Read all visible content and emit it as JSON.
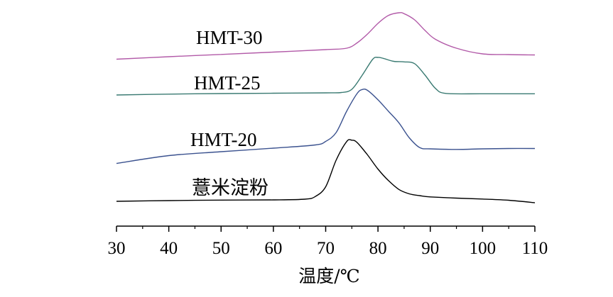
{
  "chart_data": {
    "type": "line",
    "title": "",
    "xlabel": "温度/℃",
    "ylabel": "",
    "xlim": [
      30,
      110
    ],
    "xticks": [
      30,
      40,
      50,
      60,
      70,
      80,
      90,
      100,
      110
    ],
    "y_axis_shown": false,
    "grid": false,
    "series": [
      {
        "name": "HMT-30",
        "color": "#b25aa8",
        "x": [
          30,
          40,
          50,
          60,
          70,
          74,
          76,
          78,
          80,
          82,
          84,
          85,
          87,
          89,
          91,
          95,
          100,
          105,
          110
        ],
        "y": [
          1.8,
          3.2,
          4.5,
          5.8,
          7.2,
          8.0,
          11.0,
          16.0,
          22.0,
          26.5,
          28.0,
          27.5,
          24.0,
          18.0,
          13.0,
          8.0,
          4.8,
          4.4,
          4.2
        ]
      },
      {
        "name": "HMT-25",
        "color": "#3a7a72",
        "x": [
          30,
          40,
          50,
          60,
          70,
          73,
          75,
          77,
          79,
          80,
          81,
          83,
          85,
          87,
          89,
          91,
          93,
          100,
          110
        ],
        "y": [
          0.8,
          1.3,
          1.6,
          1.8,
          2.0,
          2.2,
          4.0,
          12.0,
          21.0,
          22.0,
          21.5,
          19.8,
          19.5,
          18.5,
          12.0,
          4.5,
          1.7,
          1.5,
          1.5
        ]
      },
      {
        "name": "HMT-20",
        "color": "#3b528f",
        "x": [
          30,
          40,
          50,
          60,
          68,
          70,
          72,
          74,
          76,
          77,
          78,
          80,
          82,
          84,
          86,
          88,
          90,
          95,
          100,
          105,
          110
        ],
        "y": [
          0.6,
          5.0,
          7.2,
          9.2,
          11.0,
          13.0,
          18.0,
          30.0,
          40.0,
          42.3,
          41.8,
          36.5,
          30.0,
          23.5,
          15.0,
          9.5,
          8.8,
          8.5,
          8.8,
          9.0,
          9.0
        ]
      },
      {
        "name": "薏米淀粉",
        "color": "#000000",
        "x": [
          30,
          40,
          50,
          60,
          66,
          68,
          70,
          72,
          74,
          75,
          76,
          78,
          80,
          82,
          84,
          86,
          88,
          90,
          95,
          100,
          105,
          110
        ],
        "y": [
          0.8,
          1.2,
          1.5,
          1.6,
          2.0,
          3.5,
          9.0,
          24.0,
          34.5,
          35.3,
          34.0,
          27.0,
          19.0,
          12.5,
          7.5,
          5.0,
          4.0,
          3.3,
          2.6,
          2.1,
          1.4,
          0.0
        ]
      }
    ]
  }
}
